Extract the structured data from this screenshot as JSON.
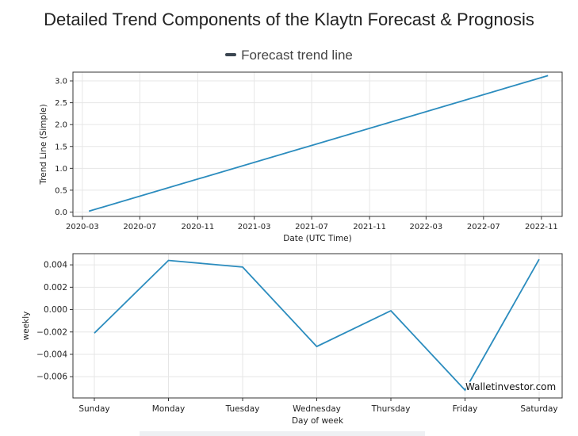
{
  "title": "Detailed Trend Components of the Klaytn Forecast & Prognosis",
  "legend_label": "Forecast trend line",
  "watermark": "Walletinvestor.com",
  "colors": {
    "line": "#2b8cbe",
    "grid": "#e6e6e6",
    "axis": "#333333",
    "legend_swatch": "#3a4550"
  },
  "chart_data": [
    {
      "type": "line",
      "xlabel": "Date (UTC Time)",
      "ylabel": "Trend Line (Simple)",
      "x_ticks": [
        "2020-03",
        "2020-07",
        "2020-11",
        "2021-03",
        "2021-07",
        "2021-11",
        "2022-03",
        "2022-07",
        "2022-11"
      ],
      "y_ticks": [
        "0.0",
        "0.5",
        "1.0",
        "1.5",
        "2.0",
        "2.5",
        "3.0"
      ],
      "xlim": [
        "2020-02-10",
        "2022-12-15"
      ],
      "ylim": [
        -0.1,
        3.2
      ],
      "grid": true,
      "series": [
        {
          "x": [
            "2020-03-15",
            "2022-11-15"
          ],
          "y": [
            0.02,
            3.12
          ]
        }
      ]
    },
    {
      "type": "line",
      "xlabel": "Day of week",
      "ylabel": "weekly",
      "categories": [
        "Sunday",
        "Monday",
        "Tuesday",
        "Wednesday",
        "Thursday",
        "Friday",
        "Saturday"
      ],
      "y_ticks": [
        "0.004",
        "0.002",
        "0.000",
        "−0.002",
        "−0.004",
        "−0.006"
      ],
      "ylim": [
        -0.0079,
        0.005
      ],
      "grid": true,
      "series": [
        {
          "values": [
            -0.0021,
            0.0044,
            0.0038,
            -0.0033,
            -0.0001,
            -0.0072,
            0.0045
          ]
        }
      ]
    }
  ]
}
